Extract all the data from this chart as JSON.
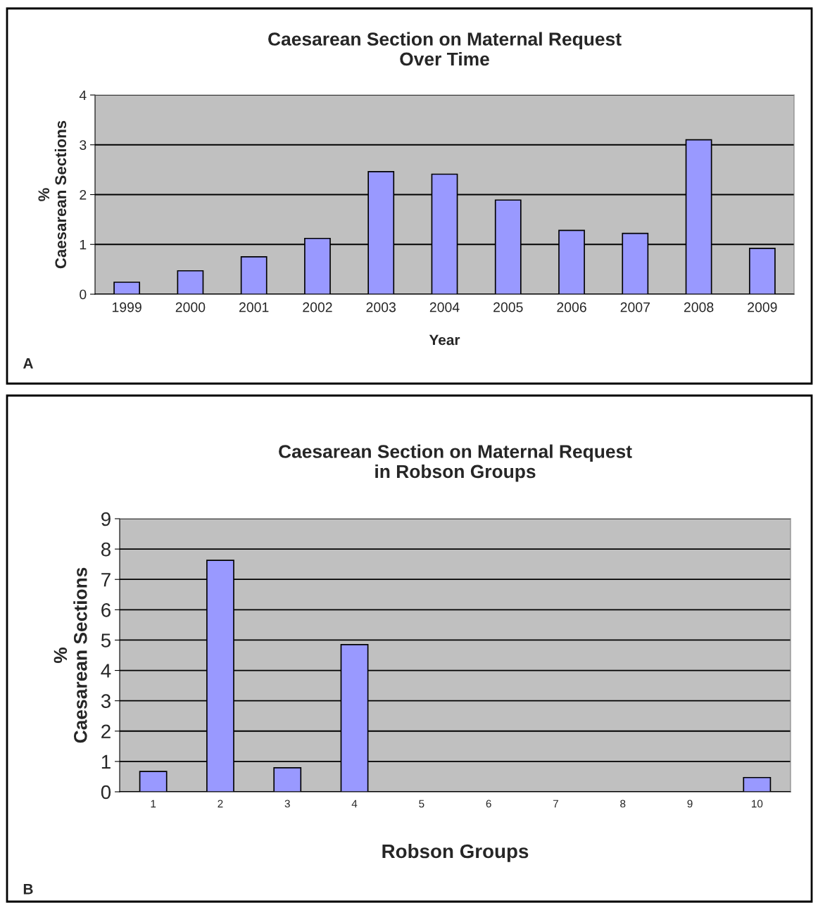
{
  "chart_data": [
    {
      "type": "bar",
      "title": "Caesarean Section on Maternal Request\nOver Time",
      "xlabel": "Year",
      "ylabel": "%\nCaesarean Sections",
      "categories": [
        "1999",
        "2000",
        "2001",
        "2002",
        "2003",
        "2004",
        "2005",
        "2006",
        "2007",
        "2008",
        "2009"
      ],
      "values": [
        0.24,
        0.47,
        0.75,
        1.12,
        2.46,
        2.41,
        1.89,
        1.28,
        1.22,
        3.1,
        0.92
      ],
      "color": "#9999ff",
      "ylim": [
        0,
        4
      ],
      "yticks": [
        0,
        1,
        2,
        3,
        4
      ],
      "grid": "y",
      "annotations": [
        "A"
      ]
    },
    {
      "type": "bar",
      "title": "Caesarean Section on Maternal Request\nin Robson Groups",
      "xlabel": "Robson Groups",
      "ylabel": "%\nCaesarean Sections",
      "categories": [
        "1",
        "2",
        "3",
        "4",
        "5",
        "6",
        "7",
        "8",
        "9",
        "10"
      ],
      "values": [
        0.67,
        7.63,
        0.79,
        4.85,
        0,
        0,
        0,
        0,
        0,
        0.47
      ],
      "color": "#9999ff",
      "ylim": [
        0,
        9
      ],
      "yticks": [
        0,
        1,
        2,
        3,
        4,
        5,
        6,
        7,
        8,
        9
      ],
      "grid": "y",
      "annotations": [
        "B"
      ]
    }
  ]
}
